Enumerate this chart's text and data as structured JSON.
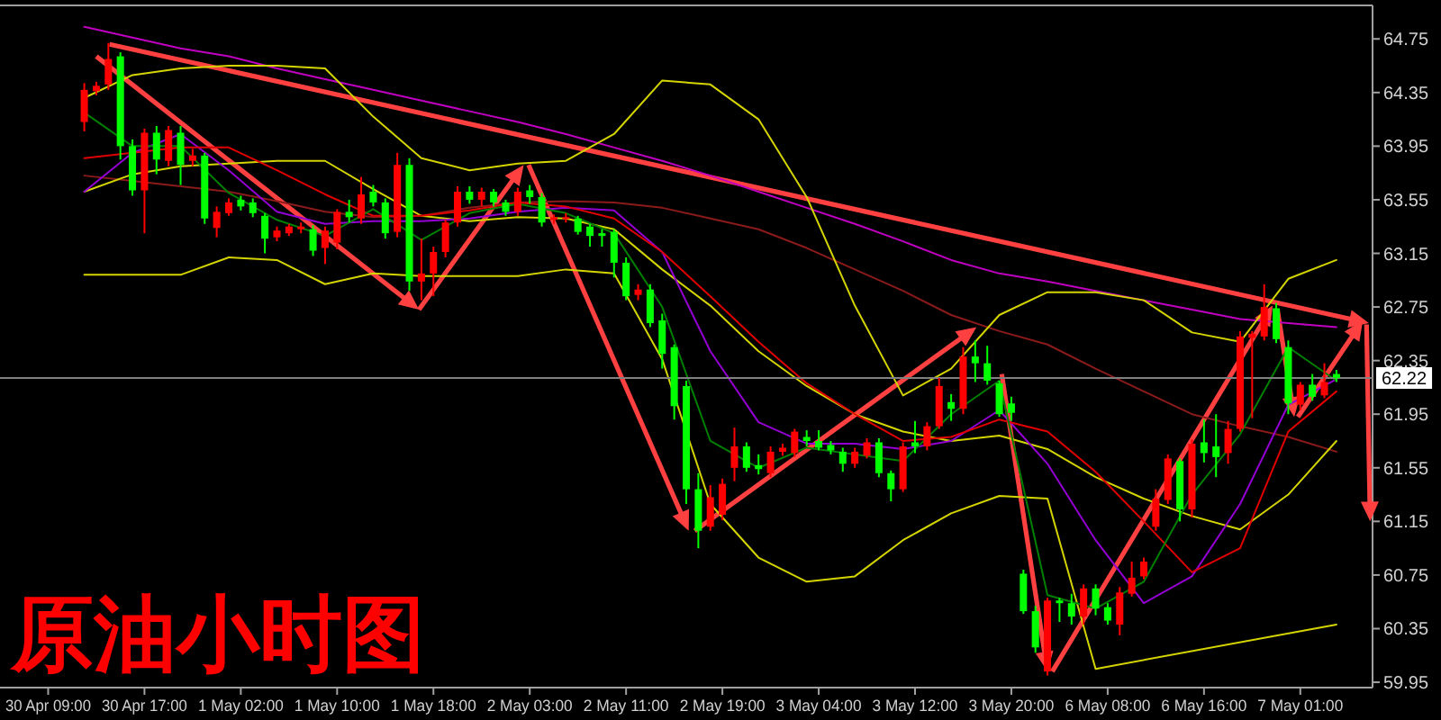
{
  "chart_data": {
    "type": "candlestick",
    "title": "原油小时图",
    "ylim": [
      59.91,
      65.0
    ],
    "yticks": [
      59.95,
      60.35,
      60.75,
      61.15,
      61.55,
      61.95,
      62.35,
      62.75,
      63.15,
      63.55,
      63.95,
      64.35,
      64.75
    ],
    "ref_lines": [
      {
        "axis": "y",
        "value": 62.22,
        "label": "62.22",
        "color": "#808080"
      }
    ],
    "categories": [
      "30 Apr 09:00",
      null,
      null,
      null,
      null,
      null,
      null,
      null,
      "30 Apr 17:00",
      null,
      null,
      null,
      null,
      null,
      null,
      null,
      "1 May 02:00",
      null,
      null,
      null,
      null,
      null,
      null,
      null,
      "1 May 10:00",
      null,
      null,
      null,
      null,
      null,
      null,
      null,
      "1 May 18:00",
      null,
      null,
      null,
      null,
      null,
      null,
      null,
      "2 May 03:00",
      null,
      null,
      null,
      null,
      null,
      null,
      null,
      "2 May 11:00",
      null,
      null,
      null,
      null,
      null,
      null,
      null,
      "2 May 19:00",
      null,
      null,
      null,
      null,
      null,
      null,
      null,
      "3 May 04:00",
      null,
      null,
      null,
      null,
      null,
      null,
      null,
      "3 May 12:00",
      null,
      null,
      null,
      null,
      null,
      null,
      null,
      "3 May 20:00",
      null,
      null,
      null,
      null,
      null,
      null,
      null,
      "6 May 08:00",
      null,
      null,
      null,
      null,
      null,
      null,
      null,
      "6 May 16:00",
      null,
      null,
      null,
      null,
      null,
      null,
      null,
      "7 May 01:00",
      null,
      null,
      null
    ],
    "ohlc": [
      null,
      null,
      null,
      [
        64.13,
        64.42,
        64.06,
        64.37
      ],
      [
        64.36,
        64.43,
        64.33,
        64.4
      ],
      [
        64.41,
        64.72,
        64.37,
        64.6
      ],
      [
        64.62,
        64.65,
        63.85,
        63.95
      ],
      [
        63.95,
        64.0,
        63.58,
        63.62
      ],
      [
        63.62,
        64.08,
        63.3,
        64.05
      ],
      [
        64.05,
        64.1,
        63.74,
        63.85
      ],
      [
        63.84,
        64.1,
        63.8,
        64.07
      ],
      [
        64.05,
        64.1,
        63.66,
        63.81
      ],
      [
        63.84,
        63.93,
        63.8,
        63.88
      ],
      [
        63.88,
        63.9,
        63.37,
        63.41
      ],
      [
        63.34,
        63.5,
        63.27,
        63.46
      ],
      [
        63.45,
        63.56,
        63.43,
        63.53
      ],
      [
        63.55,
        63.58,
        63.47,
        63.5
      ],
      [
        63.53,
        63.56,
        63.42,
        63.45
      ],
      [
        63.43,
        63.45,
        63.15,
        63.26
      ],
      [
        63.27,
        63.35,
        63.24,
        63.32
      ],
      [
        63.3,
        63.37,
        63.28,
        63.35
      ],
      [
        63.33,
        63.38,
        63.3,
        63.35
      ],
      [
        63.33,
        63.36,
        63.13,
        63.17
      ],
      [
        63.19,
        63.35,
        63.07,
        63.32
      ],
      [
        63.23,
        63.48,
        63.18,
        63.46
      ],
      [
        63.46,
        63.55,
        63.38,
        63.42
      ],
      [
        63.41,
        63.72,
        63.37,
        63.59
      ],
      [
        63.61,
        63.66,
        63.5,
        63.53
      ],
      [
        63.53,
        63.56,
        63.26,
        63.3
      ],
      [
        63.31,
        63.9,
        63.27,
        63.81
      ],
      [
        63.81,
        63.86,
        62.87,
        62.94
      ],
      [
        62.94,
        63.26,
        62.8,
        63.0
      ],
      [
        63.0,
        63.2,
        62.83,
        63.16
      ],
      [
        63.16,
        63.4,
        63.12,
        63.38
      ],
      [
        63.38,
        63.65,
        63.35,
        63.61
      ],
      [
        63.61,
        63.65,
        63.52,
        63.55
      ],
      [
        63.55,
        63.64,
        63.5,
        63.61
      ],
      [
        63.61,
        63.63,
        63.5,
        63.53
      ],
      [
        63.53,
        63.55,
        63.43,
        63.46
      ],
      [
        63.46,
        63.64,
        63.43,
        63.61
      ],
      [
        63.62,
        63.66,
        63.52,
        63.57
      ],
      [
        63.57,
        63.6,
        63.35,
        63.38
      ],
      [
        63.4,
        63.44,
        63.37,
        63.42
      ],
      [
        63.41,
        63.45,
        63.38,
        63.42
      ],
      [
        63.41,
        63.43,
        63.29,
        63.31
      ],
      [
        63.35,
        63.37,
        63.2,
        63.28
      ],
      [
        63.3,
        63.33,
        63.2,
        63.28
      ],
      [
        63.31,
        63.33,
        62.97,
        63.08
      ],
      [
        63.08,
        63.12,
        62.8,
        62.83
      ],
      [
        62.84,
        62.92,
        62.8,
        62.88
      ],
      [
        62.88,
        62.92,
        62.6,
        62.63
      ],
      [
        62.65,
        62.7,
        62.29,
        62.4
      ],
      [
        62.45,
        62.47,
        61.91,
        62.01
      ],
      [
        62.16,
        62.2,
        61.28,
        61.39
      ],
      [
        61.39,
        61.51,
        60.95,
        61.08
      ],
      [
        61.11,
        61.42,
        61.08,
        61.33
      ],
      [
        61.2,
        61.47,
        61.16,
        61.43
      ],
      [
        61.55,
        61.85,
        61.45,
        61.71
      ],
      [
        61.71,
        61.74,
        61.52,
        61.55
      ],
      [
        61.57,
        61.65,
        61.5,
        61.54
      ],
      [
        61.51,
        61.71,
        61.48,
        61.67
      ],
      [
        61.67,
        61.73,
        61.64,
        61.7
      ],
      [
        61.66,
        61.84,
        61.63,
        61.82
      ],
      [
        61.78,
        61.83,
        61.71,
        61.75
      ],
      [
        61.75,
        61.83,
        61.68,
        61.7
      ],
      [
        61.72,
        61.75,
        61.65,
        61.68
      ],
      [
        61.67,
        61.7,
        61.52,
        61.58
      ],
      [
        61.58,
        61.7,
        61.55,
        61.67
      ],
      [
        61.64,
        61.77,
        61.62,
        61.74
      ],
      [
        61.74,
        61.77,
        61.48,
        61.51
      ],
      [
        61.51,
        61.53,
        61.3,
        61.39
      ],
      [
        61.39,
        61.74,
        61.37,
        61.71
      ],
      [
        61.74,
        61.9,
        61.66,
        61.71
      ],
      [
        61.71,
        61.89,
        61.68,
        61.86
      ],
      [
        61.86,
        62.22,
        61.84,
        62.16
      ],
      [
        62.04,
        62.1,
        61.9,
        61.99
      ],
      [
        61.99,
        62.45,
        61.95,
        62.38
      ],
      [
        62.38,
        62.5,
        62.19,
        62.33
      ],
      [
        62.33,
        62.46,
        62.17,
        62.2
      ],
      [
        62.18,
        62.2,
        61.93,
        61.95
      ],
      [
        62.03,
        62.08,
        61.9,
        61.96
      ],
      [
        60.76,
        60.79,
        60.46,
        60.48
      ],
      [
        60.48,
        60.52,
        60.17,
        60.21
      ],
      [
        60.03,
        60.58,
        60.0,
        60.56
      ],
      [
        60.56,
        60.58,
        60.4,
        60.54
      ],
      [
        60.54,
        60.61,
        60.38,
        60.44
      ],
      [
        60.44,
        60.68,
        60.38,
        60.65
      ],
      [
        60.65,
        60.68,
        60.45,
        60.5
      ],
      [
        60.51,
        60.54,
        60.38,
        60.41
      ],
      [
        60.38,
        60.66,
        60.3,
        60.62
      ],
      [
        60.61,
        60.85,
        60.59,
        60.73
      ],
      [
        60.74,
        60.88,
        60.72,
        60.85
      ],
      [
        61.11,
        61.39,
        61.08,
        61.32
      ],
      [
        61.31,
        61.65,
        61.28,
        61.62
      ],
      [
        61.6,
        61.62,
        61.15,
        61.24
      ],
      [
        61.24,
        61.76,
        61.18,
        61.73
      ],
      [
        61.74,
        61.91,
        61.59,
        61.66
      ],
      [
        61.71,
        61.95,
        61.48,
        61.63
      ],
      [
        61.66,
        61.9,
        61.58,
        61.84
      ],
      [
        61.84,
        62.57,
        61.82,
        62.53
      ],
      [
        62.52,
        62.57,
        61.92,
        62.55
      ],
      [
        62.53,
        62.92,
        62.5,
        62.75
      ],
      [
        62.74,
        62.78,
        62.48,
        62.51
      ],
      [
        62.45,
        62.5,
        61.95,
        62.03
      ],
      [
        62.02,
        62.19,
        61.98,
        62.17
      ],
      [
        62.17,
        62.25,
        62.05,
        62.08
      ],
      [
        62.09,
        62.33,
        62.07,
        62.19
      ],
      [
        62.25,
        62.28,
        62.19,
        62.22
      ]
    ],
    "colors": [
      null,
      null,
      null,
      "#ff0000",
      "#ff0000",
      "#ff0000",
      "#00ff00",
      "#00ff00",
      "#ff0000",
      "#00ff00",
      "#ff0000",
      "#00ff00",
      "#ff0000",
      "#00ff00",
      "#ff0000",
      "#ff0000",
      "#00ff00",
      "#00ff00",
      "#00ff00",
      "#ff0000",
      "#ff0000",
      "#ff0000",
      "#00ff00",
      "#ff0000",
      "#ff0000",
      "#00ff00",
      "#ff0000",
      "#00ff00",
      "#00ff00",
      "#ff0000",
      "#00ff00",
      "#ff0000",
      "#ff0000",
      "#ff0000",
      "#ff0000",
      "#00ff00",
      "#ff0000",
      "#00ff00",
      "#00ff00",
      "#ff0000",
      "#00ff00",
      "#00ff00",
      "#ff0000",
      "#ff0000",
      "#00ff00",
      "#00ff00",
      "#00ff00",
      "#00ff00",
      "#00ff00",
      "#ff0000",
      "#00ff00",
      "#00ff00",
      "#00ff00",
      "#00ff00",
      "#00ff00",
      "#ff0000",
      "#ff0000",
      "#ff0000",
      "#00ff00",
      "#00ff00",
      "#ff0000",
      "#ff0000",
      "#ff0000",
      "#00ff00",
      "#00ff00",
      "#00ff00",
      "#00ff00",
      "#ff0000",
      "#ff0000",
      "#00ff00",
      "#00ff00",
      "#ff0000",
      "#00ff00",
      "#ff0000",
      "#ff0000",
      "#00ff00",
      "#ff0000",
      "#00ff00",
      "#00ff00",
      "#00ff00",
      "#00ff00",
      "#00ff00",
      "#00ff00",
      "#ff0000",
      "#00ff00",
      "#00ff00",
      "#ff0000",
      "#00ff00",
      "#00ff00",
      "#ff0000",
      "#ff0000",
      "#ff0000",
      "#ff0000",
      "#ff0000",
      "#00ff00",
      "#ff0000",
      "#00ff00",
      "#00ff00",
      "#ff0000",
      "#ff0000",
      "#ff0000",
      "#ff0000",
      "#00ff00",
      "#00ff00",
      "#ff0000",
      "#00ff00",
      "#ff0000",
      "#00ff00"
    ],
    "series": [
      {
        "type": "line",
        "color": "#c000c0",
        "values": [
          null,
          null,
          null,
          64.84,
          null,
          null,
          null,
          64.76,
          null,
          null,
          null,
          64.68,
          null,
          null,
          null,
          64.62,
          null,
          null,
          null,
          64.53,
          null,
          null,
          null,
          64.45,
          null,
          null,
          null,
          64.37,
          null,
          null,
          null,
          64.29,
          null,
          null,
          null,
          64.21,
          null,
          null,
          null,
          64.13,
          null,
          null,
          null,
          64.04,
          null,
          null,
          null,
          63.94,
          null,
          null,
          null,
          63.84,
          null,
          null,
          null,
          63.73,
          null,
          null,
          null,
          63.61,
          null,
          null,
          null,
          63.49,
          null,
          null,
          null,
          63.37,
          null,
          null,
          null,
          63.24,
          null,
          null,
          null,
          63.1,
          null,
          null,
          null,
          63.0,
          null,
          null,
          null,
          62.94,
          null,
          null,
          null,
          62.87,
          null,
          null,
          null,
          62.8,
          null,
          null,
          null,
          62.73,
          null,
          null,
          null,
          62.66,
          null,
          null,
          null,
          62.63,
          null,
          null,
          null,
          62.6
        ]
      },
      {
        "type": "line",
        "color": "#8b1a1a",
        "values": [
          null,
          null,
          null,
          63.73,
          null,
          null,
          null,
          63.69,
          null,
          null,
          null,
          63.65,
          null,
          null,
          null,
          63.61,
          null,
          null,
          null,
          63.54,
          null,
          null,
          null,
          63.46,
          null,
          null,
          null,
          63.42,
          null,
          null,
          null,
          63.43,
          null,
          null,
          null,
          63.49,
          null,
          null,
          null,
          63.53,
          null,
          null,
          null,
          63.54,
          null,
          null,
          null,
          63.53,
          null,
          null,
          null,
          63.49,
          null,
          null,
          null,
          63.41,
          null,
          null,
          null,
          63.33,
          null,
          null,
          null,
          63.19,
          null,
          null,
          null,
          63.03,
          null,
          null,
          null,
          62.87,
          null,
          null,
          null,
          62.69,
          null,
          null,
          null,
          62.57,
          null,
          null,
          null,
          62.47,
          null,
          null,
          null,
          62.29,
          null,
          null,
          null,
          62.12,
          null,
          null,
          null,
          61.95,
          null,
          null,
          null,
          61.86,
          null,
          null,
          null,
          61.78,
          null,
          null,
          null,
          61.67
        ]
      },
      {
        "type": "line",
        "color": "#d4d400",
        "values": [
          null,
          null,
          null,
          64.31,
          null,
          null,
          null,
          64.48,
          null,
          null,
          null,
          64.53,
          null,
          null,
          null,
          64.55,
          null,
          null,
          null,
          64.55,
          null,
          null,
          null,
          64.53,
          null,
          null,
          null,
          64.17,
          null,
          null,
          null,
          63.86,
          null,
          null,
          null,
          63.77,
          null,
          null,
          null,
          63.82,
          null,
          null,
          null,
          63.84,
          null,
          null,
          null,
          64.04,
          null,
          null,
          null,
          64.44,
          null,
          null,
          null,
          64.41,
          null,
          null,
          null,
          64.15,
          null,
          null,
          null,
          63.57,
          null,
          null,
          null,
          62.76,
          null,
          null,
          null,
          62.09,
          null,
          null,
          null,
          62.29,
          null,
          null,
          null,
          62.69,
          null,
          null,
          null,
          62.86,
          null,
          null,
          null,
          62.86,
          null,
          null,
          null,
          62.8,
          null,
          null,
          null,
          62.56,
          null,
          null,
          null,
          62.49,
          null,
          null,
          null,
          62.96,
          null,
          null,
          null,
          63.1
        ]
      },
      {
        "type": "line",
        "color": "#d4d400",
        "values": [
          null,
          null,
          null,
          63.61,
          null,
          null,
          null,
          63.74,
          null,
          null,
          null,
          63.8,
          null,
          null,
          null,
          63.82,
          null,
          null,
          null,
          63.84,
          null,
          null,
          null,
          63.84,
          null,
          null,
          null,
          63.63,
          null,
          null,
          null,
          63.43,
          null,
          null,
          null,
          63.39,
          null,
          null,
          null,
          63.42,
          null,
          null,
          null,
          63.41,
          null,
          null,
          null,
          63.33,
          null,
          null,
          null,
          63.03,
          null,
          null,
          null,
          62.76,
          null,
          null,
          null,
          62.42,
          null,
          null,
          null,
          62.16,
          null,
          null,
          null,
          61.95,
          null,
          null,
          null,
          61.82,
          null,
          null,
          null,
          61.75,
          null,
          null,
          null,
          61.79,
          null,
          null,
          null,
          61.69,
          null,
          null,
          null,
          61.48,
          null,
          null,
          null,
          61.32,
          null,
          null,
          null,
          61.19,
          null,
          null,
          null,
          61.09,
          null,
          null,
          null,
          61.35,
          null,
          null,
          null,
          61.75
        ]
      },
      {
        "type": "line",
        "color": "#d4d400",
        "values": [
          null,
          null,
          null,
          62.99,
          null,
          null,
          null,
          62.99,
          null,
          null,
          null,
          62.99,
          null,
          null,
          null,
          63.12,
          null,
          null,
          null,
          63.1,
          null,
          null,
          null,
          62.92,
          null,
          null,
          null,
          63.0,
          null,
          null,
          null,
          62.98,
          null,
          null,
          null,
          62.98,
          null,
          null,
          null,
          62.98,
          null,
          null,
          null,
          63.03,
          null,
          null,
          null,
          63.0,
          null,
          null,
          null,
          62.36,
          null,
          null,
          null,
          61.28,
          null,
          null,
          null,
          60.88,
          null,
          null,
          null,
          60.7,
          null,
          null,
          null,
          60.74,
          null,
          null,
          null,
          61.01,
          null,
          null,
          null,
          61.21,
          null,
          null,
          null,
          61.34,
          null,
          null,
          null,
          61.32,
          null,
          null,
          null,
          60.05,
          null,
          null,
          null,
          null,
          null,
          null,
          null,
          null,
          null,
          null,
          null,
          null,
          null,
          null,
          null,
          null,
          null,
          null,
          null,
          60.38
        ]
      },
      {
        "type": "line",
        "color": "#9400d3",
        "values": [
          null,
          null,
          null,
          63.61,
          null,
          null,
          null,
          63.9,
          null,
          null,
          null,
          64.04,
          null,
          null,
          null,
          63.77,
          null,
          null,
          null,
          63.46,
          null,
          null,
          null,
          63.37,
          null,
          null,
          null,
          63.39,
          null,
          null,
          null,
          63.39,
          null,
          null,
          null,
          63.41,
          null,
          null,
          null,
          63.46,
          null,
          null,
          null,
          63.49,
          null,
          null,
          null,
          63.47,
          null,
          null,
          null,
          63.16,
          null,
          null,
          null,
          62.42,
          null,
          null,
          null,
          61.89,
          null,
          null,
          null,
          61.73,
          null,
          null,
          null,
          61.73,
          null,
          null,
          null,
          61.69,
          null,
          null,
          null,
          61.75,
          null,
          null,
          null,
          61.98,
          null,
          null,
          null,
          61.58,
          null,
          null,
          null,
          61.01,
          null,
          null,
          null,
          60.54,
          null,
          null,
          null,
          60.74,
          null,
          null,
          null,
          61.28,
          null,
          null,
          null,
          62.02,
          null,
          null,
          null,
          62.21
        ]
      },
      {
        "type": "line",
        "color": "#e00000",
        "values": [
          null,
          null,
          null,
          63.86,
          null,
          null,
          null,
          63.9,
          null,
          null,
          null,
          63.94,
          null,
          null,
          null,
          63.94,
          null,
          null,
          null,
          63.77,
          null,
          null,
          null,
          63.59,
          null,
          null,
          null,
          63.43,
          null,
          null,
          null,
          63.43,
          null,
          null,
          null,
          63.47,
          null,
          null,
          null,
          63.53,
          null,
          null,
          null,
          63.5,
          null,
          null,
          null,
          63.41,
          null,
          null,
          null,
          63.16,
          null,
          null,
          null,
          62.83,
          null,
          null,
          null,
          62.49,
          null,
          null,
          null,
          62.18,
          null,
          null,
          null,
          61.95,
          null,
          null,
          null,
          61.75,
          null,
          null,
          null,
          61.78,
          null,
          null,
          null,
          61.91,
          null,
          null,
          null,
          61.82,
          null,
          null,
          null,
          61.52,
          null,
          null,
          null,
          61.15,
          null,
          null,
          null,
          60.77,
          null,
          null,
          null,
          60.95,
          null,
          null,
          null,
          61.82,
          null,
          null,
          null,
          62.12
        ]
      },
      {
        "type": "line",
        "color": "#008000",
        "values": [
          null,
          null,
          null,
          64.2,
          null,
          null,
          null,
          63.95,
          null,
          null,
          null,
          63.95,
          null,
          null,
          null,
          63.6,
          null,
          null,
          null,
          63.4,
          null,
          null,
          null,
          63.28,
          null,
          null,
          null,
          63.48,
          null,
          null,
          null,
          63.25,
          null,
          null,
          null,
          63.45,
          null,
          null,
          null,
          63.52,
          null,
          null,
          null,
          63.45,
          null,
          null,
          null,
          63.3,
          null,
          null,
          null,
          62.75,
          null,
          null,
          null,
          61.75,
          null,
          null,
          null,
          61.55,
          null,
          null,
          null,
          61.7,
          null,
          null,
          null,
          61.65,
          null,
          null,
          null,
          61.6,
          null,
          null,
          null,
          61.95,
          null,
          null,
          null,
          62.2,
          null,
          null,
          null,
          60.6,
          null,
          null,
          null,
          60.5,
          null,
          null,
          null,
          60.7,
          null,
          null,
          null,
          61.35,
          null,
          null,
          null,
          61.8,
          null,
          null,
          null,
          62.45,
          null,
          null,
          null,
          62.2
        ]
      }
    ]
  }
}
